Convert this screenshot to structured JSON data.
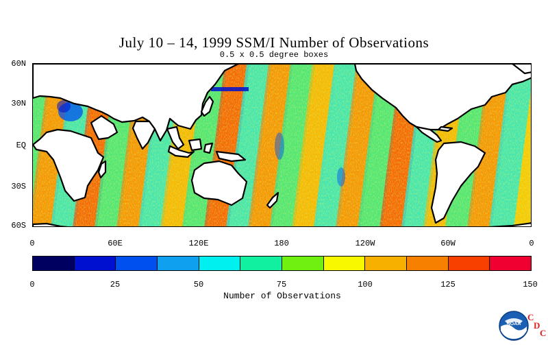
{
  "title": "July 10 – 14, 1999 SSM/I Number of Observations",
  "subtitle": "0.5 x 0.5 degree boxes",
  "map": {
    "lat_labels": [
      "60N",
      "30N",
      "EQ",
      "30S",
      "60S"
    ],
    "lon_labels": [
      "0",
      "60E",
      "120E",
      "180",
      "120W",
      "60W",
      "0"
    ],
    "land_color": "#ffffff",
    "coast_color": "#000000"
  },
  "colorbar": {
    "title": "Number of Observations",
    "tick_labels": [
      "0",
      "25",
      "50",
      "75",
      "100",
      "125",
      "150"
    ],
    "colors": [
      "#000060",
      "#0010d0",
      "#0050f0",
      "#10a0f0",
      "#00f0f0",
      "#10f0a0",
      "#70f010",
      "#f8f800",
      "#f8b000",
      "#f88000",
      "#f84000",
      "#f00030"
    ]
  },
  "logo": {
    "noaa_text": "NOAA",
    "cdc_letters": [
      "C",
      "D",
      "C"
    ]
  }
}
